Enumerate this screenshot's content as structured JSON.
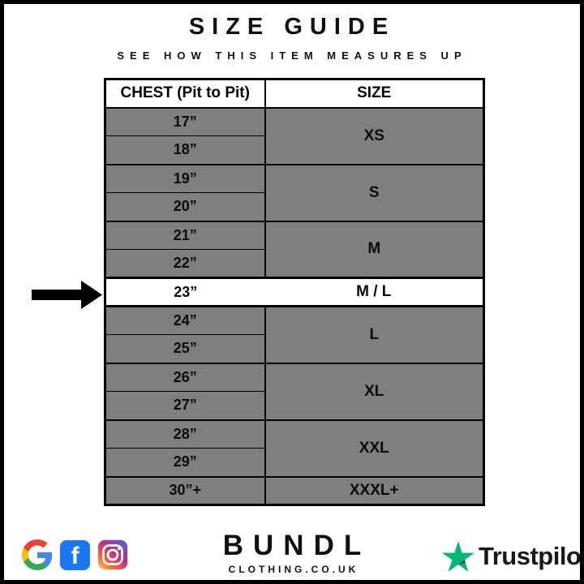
{
  "header": {
    "title": "SIZE GUIDE",
    "subtitle": "SEE HOW THIS ITEM MEASURES UP"
  },
  "table": {
    "columns": [
      "CHEST (Pit to Pit)",
      "SIZE"
    ],
    "groups": [
      {
        "chest": [
          "17”",
          "18”"
        ],
        "size": "XS"
      },
      {
        "chest": [
          "19”",
          "20”"
        ],
        "size": "S"
      },
      {
        "chest": [
          "21”",
          "22”"
        ],
        "size": "M"
      },
      {
        "chest": [
          "23”"
        ],
        "size": "M / L",
        "highlighted": true
      },
      {
        "chest": [
          "24”",
          "25”"
        ],
        "size": "L"
      },
      {
        "chest": [
          "26”",
          "27”"
        ],
        "size": "XL"
      },
      {
        "chest": [
          "28”",
          "29”"
        ],
        "size": "XXL"
      },
      {
        "chest": [
          "30”+"
        ],
        "size": "XXXL+"
      }
    ],
    "highlighted_row": {
      "chest": "23”",
      "size": "M / L"
    }
  },
  "footer": {
    "brand": {
      "name": "BUNDL",
      "domain": "CLOTHING.CO.UK"
    },
    "social_icons": [
      "google",
      "facebook",
      "instagram"
    ],
    "facebook_letter": "f",
    "trustpilot_label": "Trustpilot"
  },
  "colors": {
    "row_gray": "#7f7f7f",
    "highlight_white": "#ffffff",
    "border_black": "#000000",
    "facebook_blue": "#1877F2",
    "google_blue": "#4285F4",
    "google_red": "#EA4335",
    "google_yellow": "#FBBC05",
    "google_green": "#34A853",
    "trustpilot_green": "#00B67A",
    "trustpilot_dark_green": "#005128",
    "trustpilot_text": "#191919"
  }
}
